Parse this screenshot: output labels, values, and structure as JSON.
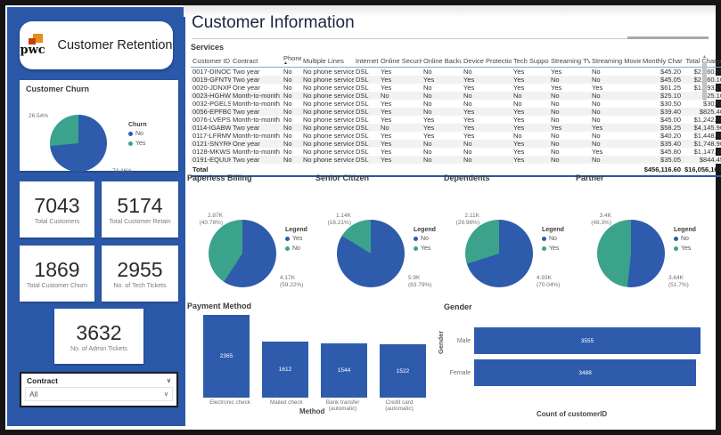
{
  "colors": {
    "blue": "#2E5BAC",
    "teal": "#3BA38C",
    "sidebar_bg": "#2B58A8",
    "logo_orange": "#E88D14",
    "logo_red": "#C2410F"
  },
  "icons": {
    "chevron_down": "∨",
    "sort_ascending": "▲",
    "scrollbar_up": "▴",
    "scrollbar_down": "▾"
  },
  "sidebar": {
    "brand": {
      "logo_text": "pwc",
      "title": "Customer Retention"
    },
    "kpis": [
      {
        "value": "7043",
        "label": "Total Customers"
      },
      {
        "value": "5174",
        "label": "Total Customer Retain"
      },
      {
        "value": "1869",
        "label": "Total Customer Churn"
      },
      {
        "value": "2955",
        "label": "No. of Tech Tickets"
      },
      {
        "value": "3632",
        "label": "No. of Admin Tickets"
      }
    ],
    "slicer": {
      "title": "Contract",
      "value": "All"
    }
  },
  "header": {
    "title": "Customer Information"
  },
  "services": {
    "title": "Services",
    "sort_column": "Phone",
    "columns": [
      "Customer ID",
      "Contract",
      "Phone",
      "Multiple Lines",
      "Internet",
      "Online Security",
      "Online Backup",
      "Device Protection",
      "Tech Support",
      "Streaming TV",
      "Streaming Movies",
      "Monthly Charge",
      "Total Charge"
    ],
    "rows": [
      [
        "0017-DINOC",
        "Two year",
        "No",
        "No phone service",
        "DSL",
        "Yes",
        "No",
        "No",
        "Yes",
        "Yes",
        "No",
        "$45.20",
        "$2,460.55"
      ],
      [
        "0019-GFNTW",
        "Two year",
        "No",
        "No phone service",
        "DSL",
        "Yes",
        "Yes",
        "Yes",
        "Yes",
        "No",
        "No",
        "$45.05",
        "$2,560.10"
      ],
      [
        "0020-JDNXP",
        "One year",
        "No",
        "No phone service",
        "DSL",
        "Yes",
        "No",
        "Yes",
        "Yes",
        "Yes",
        "Yes",
        "$61.25",
        "$1,993.20"
      ],
      [
        "0023-HGHWL",
        "Month-to-month",
        "No",
        "No phone service",
        "DSL",
        "No",
        "No",
        "No",
        "No",
        "No",
        "No",
        "$25.10",
        "$25.10"
      ],
      [
        "0032-PGELS",
        "Month-to-month",
        "No",
        "No phone service",
        "DSL",
        "Yes",
        "No",
        "No",
        "No",
        "No",
        "No",
        "$30.50",
        "$30.50"
      ],
      [
        "0056-EPFBG",
        "Two year",
        "No",
        "No phone service",
        "DSL",
        "Yes",
        "No",
        "Yes",
        "Yes",
        "No",
        "No",
        "$39.40",
        "$825.40"
      ],
      [
        "0076-LVEPS",
        "Month-to-month",
        "No",
        "No phone service",
        "DSL",
        "Yes",
        "Yes",
        "Yes",
        "Yes",
        "No",
        "No",
        "$45.00",
        "$1,242.45"
      ],
      [
        "0114-IGABW",
        "Two year",
        "No",
        "No phone service",
        "DSL",
        "No",
        "Yes",
        "Yes",
        "Yes",
        "Yes",
        "Yes",
        "$58.25",
        "$4,145.90"
      ],
      [
        "0117-LFRMW",
        "Month-to-month",
        "No",
        "No phone service",
        "DSL",
        "Yes",
        "Yes",
        "Yes",
        "No",
        "No",
        "No",
        "$40.20",
        "$1,448.80"
      ],
      [
        "0121-SNYRK",
        "One year",
        "No",
        "No phone service",
        "DSL",
        "Yes",
        "No",
        "No",
        "Yes",
        "No",
        "No",
        "$35.40",
        "$1,748.90"
      ],
      [
        "0128-MKWSG",
        "Month-to-month",
        "No",
        "No phone service",
        "DSL",
        "Yes",
        "No",
        "No",
        "Yes",
        "No",
        "Yes",
        "$45.80",
        "$1,147.00"
      ],
      [
        "0191-EQUUH",
        "Two year",
        "No",
        "No phone service",
        "DSL",
        "Yes",
        "No",
        "No",
        "Yes",
        "No",
        "No",
        "$35.05",
        "$844.45"
      ]
    ],
    "total": {
      "label": "Total",
      "monthly_charge": "$456,116.60",
      "total_charge": "$16,056,168.70"
    }
  },
  "chart_data": [
    {
      "id": "customer_churn",
      "type": "pie",
      "title": "Customer Churn",
      "legend_title": "Churn",
      "legend": [
        {
          "label": "No",
          "color": "blue"
        },
        {
          "label": "Yes",
          "color": "teal"
        }
      ],
      "slices": [
        {
          "label": "No",
          "pct": 73.46,
          "color": "blue",
          "callout_lines": [
            "73.46%"
          ]
        },
        {
          "label": "Yes",
          "pct": 26.54,
          "color": "teal",
          "callout_lines": [
            "26.54%"
          ]
        }
      ]
    },
    {
      "id": "paperless_billing",
      "type": "pie",
      "title": "Paperless Billing",
      "legend_title": "Legend",
      "legend": [
        {
          "label": "Yes",
          "color": "blue"
        },
        {
          "label": "No",
          "color": "teal"
        }
      ],
      "slices": [
        {
          "label": "Yes",
          "value": 4171,
          "pct": 59.22,
          "color": "blue",
          "callout_lines": [
            "4.17K",
            "(59.22%)"
          ]
        },
        {
          "label": "No",
          "value": 2872,
          "pct": 40.78,
          "color": "teal",
          "callout_lines": [
            "2.87K",
            "(40.78%)"
          ]
        }
      ]
    },
    {
      "id": "senior_citizen",
      "type": "pie",
      "title": "Senior Citizen",
      "legend_title": "Legend",
      "legend": [
        {
          "label": "No",
          "color": "blue"
        },
        {
          "label": "Yes",
          "color": "teal"
        }
      ],
      "slices": [
        {
          "label": "No",
          "value": 5900,
          "pct": 83.79,
          "color": "blue",
          "callout_lines": [
            "5.9K",
            "(83.79%)"
          ]
        },
        {
          "label": "Yes",
          "value": 1140,
          "pct": 16.21,
          "color": "teal",
          "callout_lines": [
            "1.14K",
            "(16.21%)"
          ]
        }
      ]
    },
    {
      "id": "dependents",
      "type": "pie",
      "title": "Dependents",
      "legend_title": "Legend",
      "legend": [
        {
          "label": "No",
          "color": "blue"
        },
        {
          "label": "Yes",
          "color": "teal"
        }
      ],
      "slices": [
        {
          "label": "No",
          "value": 4930,
          "pct": 70.04,
          "color": "blue",
          "callout_lines": [
            "4.93K",
            "(70.04%)"
          ]
        },
        {
          "label": "Yes",
          "value": 2110,
          "pct": 29.96,
          "color": "teal",
          "callout_lines": [
            "2.11K",
            "(29.96%)"
          ]
        }
      ]
    },
    {
      "id": "partner",
      "type": "pie",
      "title": "Partner",
      "legend_title": "Legend",
      "legend": [
        {
          "label": "No",
          "color": "blue"
        },
        {
          "label": "Yes",
          "color": "teal"
        }
      ],
      "slices": [
        {
          "label": "No",
          "value": 3640,
          "pct": 51.7,
          "color": "blue",
          "callout_lines": [
            "3.64K",
            "(51.7%)"
          ]
        },
        {
          "label": "Yes",
          "value": 3400,
          "pct": 48.3,
          "color": "teal",
          "callout_lines": [
            "3.4K",
            "(48.3%)"
          ]
        }
      ]
    },
    {
      "id": "payment_method",
      "type": "bar",
      "title": "Payment Method",
      "xlabel": "Method",
      "categories": [
        "Electronic check",
        "Mailed check",
        "Bank transfer (automatic)",
        "Credit card (automatic)"
      ],
      "values": [
        2365,
        1612,
        1544,
        1522
      ]
    },
    {
      "id": "gender",
      "type": "hbar",
      "title": "Gender",
      "ylabel": "Gender",
      "xlabel": "Count of customerID",
      "categories": [
        "Male",
        "Female"
      ],
      "values": [
        3555,
        3488
      ]
    }
  ]
}
